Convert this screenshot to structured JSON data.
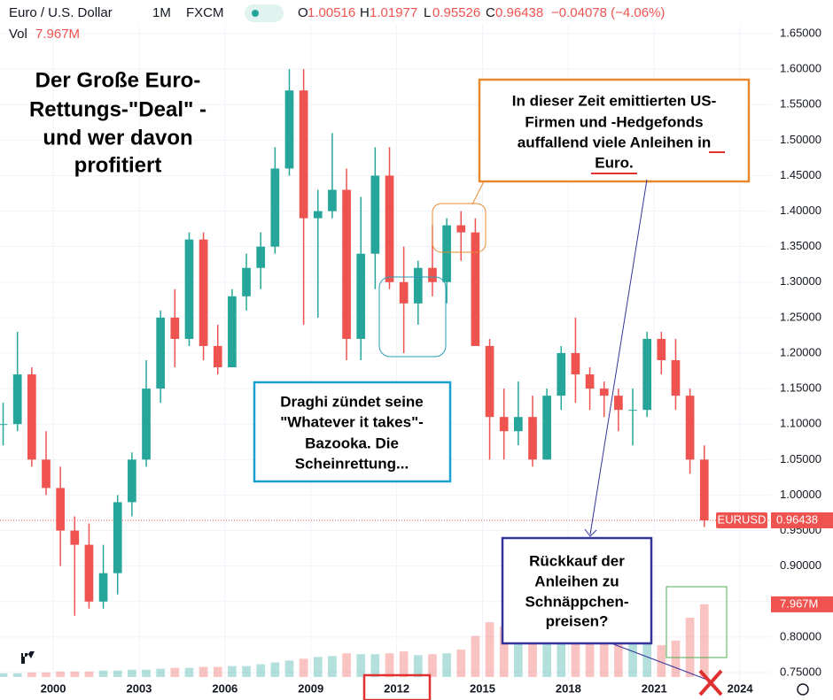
{
  "chart_data": {
    "type": "candlestick",
    "header": {
      "symbol": "Euro / U.S. Dollar",
      "interval": "1M",
      "source": "FXCM",
      "o_label": "O",
      "o": "1.00516",
      "h_label": "H",
      "h": "1.01977",
      "l_label": "L",
      "l": "0.95526",
      "c_label": "C",
      "c": "0.96438",
      "change": "−0.04078 (−4.06%)",
      "vol_label": "Vol",
      "vol": "7.967M"
    },
    "x": [
      1998.25,
      1998.75,
      1999.25,
      1999.75,
      2000.25,
      2000.75,
      2001.25,
      2001.75,
      2002.25,
      2002.75,
      2003.25,
      2003.75,
      2004.25,
      2004.75,
      2005.25,
      2005.75,
      2006.25,
      2006.75,
      2007.25,
      2007.75,
      2008.25,
      2008.75,
      2009.25,
      2009.75,
      2010.25,
      2010.75,
      2011.25,
      2011.75,
      2012.25,
      2012.75,
      2013.25,
      2013.75,
      2014.25,
      2014.75,
      2015.25,
      2015.75,
      2016.25,
      2016.75,
      2017.25,
      2017.75,
      2018.25,
      2018.75,
      2019.25,
      2019.75,
      2020.25,
      2020.75,
      2021.25,
      2021.75,
      2022.25,
      2022.75
    ],
    "open": [
      1.1,
      1.1,
      1.17,
      1.05,
      1.01,
      0.95,
      0.93,
      0.85,
      0.89,
      0.99,
      1.05,
      1.15,
      1.25,
      1.22,
      1.36,
      1.21,
      1.18,
      1.28,
      1.32,
      1.35,
      1.46,
      1.57,
      1.39,
      1.4,
      1.43,
      1.22,
      1.34,
      1.45,
      1.3,
      1.27,
      1.32,
      1.3,
      1.38,
      1.37,
      1.21,
      1.11,
      1.09,
      1.11,
      1.05,
      1.14,
      1.2,
      1.17,
      1.15,
      1.14,
      1.12,
      1.12,
      1.22,
      1.19,
      1.14,
      1.05
    ],
    "high": [
      1.13,
      1.23,
      1.18,
      1.09,
      1.04,
      0.97,
      0.96,
      0.93,
      1.0,
      1.06,
      1.19,
      1.26,
      1.29,
      1.37,
      1.37,
      1.24,
      1.29,
      1.34,
      1.37,
      1.49,
      1.6,
      1.6,
      1.43,
      1.51,
      1.46,
      1.42,
      1.49,
      1.49,
      1.35,
      1.33,
      1.38,
      1.39,
      1.4,
      1.39,
      1.22,
      1.15,
      1.16,
      1.14,
      1.15,
      1.21,
      1.25,
      1.18,
      1.16,
      1.15,
      1.15,
      1.23,
      1.23,
      1.22,
      1.15,
      1.07
    ],
    "low": [
      1.07,
      1.09,
      1.04,
      1.0,
      0.9,
      0.83,
      0.84,
      0.84,
      0.86,
      0.97,
      1.04,
      1.13,
      1.18,
      1.21,
      1.19,
      1.17,
      1.18,
      1.26,
      1.29,
      1.34,
      1.45,
      1.24,
      1.25,
      1.39,
      1.19,
      1.19,
      1.29,
      1.29,
      1.2,
      1.24,
      1.28,
      1.27,
      1.33,
      1.21,
      1.05,
      1.05,
      1.07,
      1.04,
      1.05,
      1.12,
      1.13,
      1.12,
      1.11,
      1.09,
      1.07,
      1.11,
      1.17,
      1.12,
      1.03,
      0.955
    ],
    "close": [
      1.1,
      1.17,
      1.05,
      1.01,
      0.95,
      0.93,
      0.85,
      0.89,
      0.99,
      1.05,
      1.15,
      1.25,
      1.22,
      1.36,
      1.21,
      1.18,
      1.28,
      1.32,
      1.35,
      1.46,
      1.57,
      1.39,
      1.4,
      1.43,
      1.22,
      1.34,
      1.45,
      1.3,
      1.27,
      1.32,
      1.3,
      1.38,
      1.37,
      1.21,
      1.11,
      1.09,
      1.11,
      1.05,
      1.14,
      1.2,
      1.17,
      1.15,
      1.14,
      1.12,
      1.12,
      1.22,
      1.19,
      1.14,
      1.05,
      0.96438
    ],
    "volume": [
      0.4,
      0.4,
      0.5,
      0.5,
      0.6,
      0.6,
      0.6,
      0.7,
      0.7,
      0.8,
      0.8,
      0.9,
      1.0,
      1.0,
      1.1,
      1.1,
      1.2,
      1.2,
      1.4,
      1.6,
      1.8,
      2.0,
      2.2,
      2.3,
      2.6,
      2.5,
      2.5,
      2.6,
      2.8,
      2.4,
      2.5,
      2.6,
      3.0,
      4.5,
      6.0,
      5.5,
      5.5,
      5.0,
      5.2,
      5.0,
      5.5,
      5.6,
      5.4,
      5.5,
      6.5,
      4.5,
      3.5,
      4.0,
      6.5,
      7.967
    ],
    "volume_lim": [
      0,
      72
    ],
    "up_color": "#26a69a",
    "down_color": "#ef5350",
    "symbol_label": "EURUSD",
    "last_price_label": "0.96438",
    "last_price": 0.96438,
    "last_volume_label": "7.967M",
    "xlim": [
      1998.14,
      2025.08
    ],
    "xticks": [
      2000,
      2003,
      2006,
      2009,
      2012,
      2015,
      2018,
      2021,
      2024
    ],
    "ylim": [
      0.7375,
      1.6625
    ],
    "yticks": [
      {
        "value": 0.75,
        "label": "0.75000"
      },
      {
        "value": 0.8,
        "label": "0.80000"
      },
      {
        "value": 0.85,
        "label": "0.85000"
      },
      {
        "value": 0.9,
        "label": "0.90000"
      },
      {
        "value": 0.95,
        "label": "0.95000"
      },
      {
        "value": 1.0,
        "label": "1.00000"
      },
      {
        "value": 1.05,
        "label": "1.05000"
      },
      {
        "value": 1.1,
        "label": "1.10000"
      },
      {
        "value": 1.15,
        "label": "1.15000"
      },
      {
        "value": 1.2,
        "label": "1.20000"
      },
      {
        "value": 1.25,
        "label": "1.25000"
      },
      {
        "value": 1.3,
        "label": "1.30000"
      },
      {
        "value": 1.35,
        "label": "1.35000"
      },
      {
        "value": 1.4,
        "label": "1.40000"
      },
      {
        "value": 1.45,
        "label": "1.45000"
      },
      {
        "value": 1.5,
        "label": "1.50000"
      },
      {
        "value": 1.55,
        "label": "1.55000"
      },
      {
        "value": 1.6,
        "label": "1.60000"
      },
      {
        "value": 1.65,
        "label": "1.65000"
      }
    ],
    "annotations": {
      "title": [
        "Der Große Euro-",
        "Rettungs-\"Deal\" -",
        "und wer davon",
        "profitiert"
      ],
      "orange_note": [
        "In dieser Zeit emittierten US-",
        "Firmen und -Hedgefonds",
        "auffallend viele Anleihen in",
        "Euro."
      ],
      "blue_note": [
        "Draghi zündet seine",
        "\"Whatever it takes\"-",
        "Bazooka. Die",
        "Scheinrettung..."
      ],
      "purple_note": [
        "Rückkauf der",
        "Anleihen zu",
        "Schnäppchen-",
        "preisen?"
      ]
    }
  }
}
